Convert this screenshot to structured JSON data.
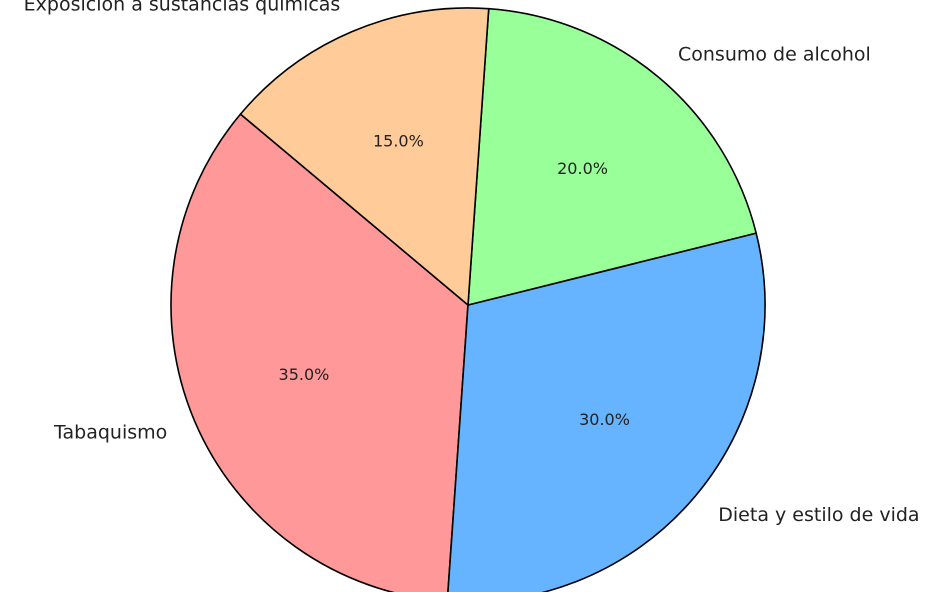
{
  "chart_data": {
    "type": "pie",
    "title": "",
    "categories": [
      "Tabaquismo",
      "Dieta y estilo de vida",
      "Consumo de alcohol",
      "Exposición a sustancias químicas"
    ],
    "values": [
      35,
      30,
      20,
      15
    ],
    "value_labels": [
      "35.0%",
      "30.0%",
      "20.0%",
      "15.0%"
    ],
    "colors": [
      "#ff9999",
      "#66b3ff",
      "#99ff99",
      "#ffcc99"
    ],
    "start_angle_deg": 140,
    "direction": "counterclockwise",
    "legend": "none"
  }
}
